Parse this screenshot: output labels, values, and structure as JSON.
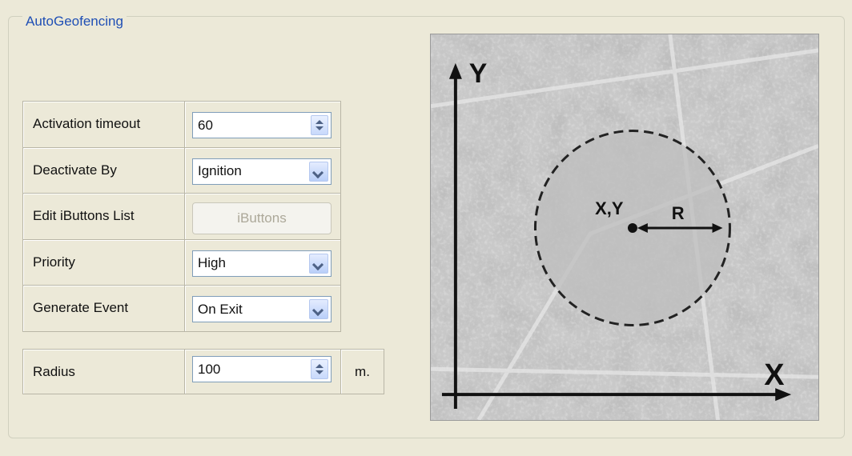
{
  "group": {
    "title": "AutoGeofencing"
  },
  "settings": {
    "rows": [
      {
        "label": "Activation timeout",
        "value": "60"
      },
      {
        "label": "Deactivate By",
        "value": "Ignition"
      },
      {
        "label": "Edit iButtons List",
        "value": "iButtons"
      },
      {
        "label": "Priority",
        "value": "High"
      },
      {
        "label": "Generate Event",
        "value": "On Exit"
      }
    ]
  },
  "radius": {
    "label": "Radius",
    "value": "100",
    "unit": "m."
  },
  "diagram": {
    "y_axis": "Y",
    "x_axis": "X",
    "center": "X,Y",
    "radius": "R"
  }
}
